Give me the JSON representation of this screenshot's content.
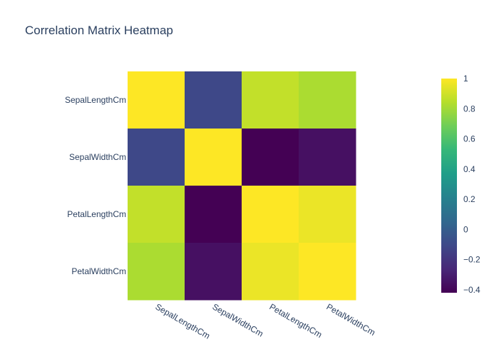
{
  "chart_data": {
    "type": "heatmap",
    "title": "Correlation Matrix Heatmap",
    "x": [
      "SepalLengthCm",
      "SepalWidthCm",
      "PetalLengthCm",
      "PetalWidthCm"
    ],
    "y": [
      "SepalLengthCm",
      "SepalWidthCm",
      "PetalLengthCm",
      "PetalWidthCm"
    ],
    "z": [
      [
        1.0,
        -0.11,
        0.87,
        0.82
      ],
      [
        -0.11,
        1.0,
        -0.42,
        -0.36
      ],
      [
        0.87,
        -0.42,
        1.0,
        0.96
      ],
      [
        0.82,
        -0.36,
        0.96,
        1.0
      ]
    ],
    "zmin": -0.42,
    "zmax": 1.0,
    "colorscale": "Viridis",
    "colorbar_ticks": [
      1,
      0.8,
      0.6,
      0.4,
      0.2,
      0,
      -0.2,
      -0.4
    ],
    "colorbar_tick_labels": [
      "1",
      "0.8",
      "0.6",
      "0.4",
      "0.2",
      "0",
      "−0.2",
      "−0.4"
    ],
    "colors": {
      "text": "#2a3f5f",
      "background": "#ffffff",
      "viridis": [
        "#440154",
        "#482878",
        "#3e4989",
        "#31688e",
        "#26828e",
        "#1f9e89",
        "#35b779",
        "#6ece58",
        "#b5de2b",
        "#fde725"
      ]
    }
  }
}
